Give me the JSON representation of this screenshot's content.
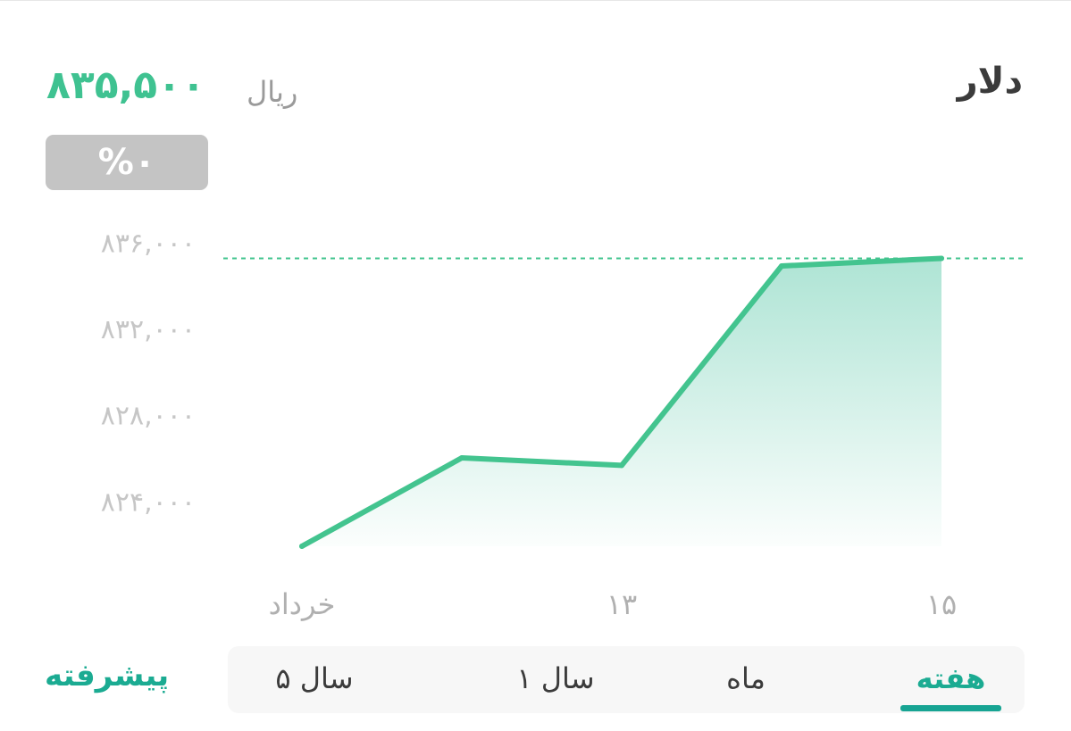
{
  "header": {
    "title": "دلار",
    "price": "۸۳۵,۵۰۰",
    "currency": "ریال",
    "change": "%۰"
  },
  "chart_data": {
    "type": "area",
    "x": [
      1,
      2,
      3,
      4,
      5
    ],
    "values": [
      821900,
      826000,
      825650,
      834900,
      835250
    ],
    "reference_value": 835250,
    "ylim": [
      821900,
      837300
    ],
    "y_ticks": [
      {
        "value": 836000,
        "label": "۸۳۶,۰۰۰"
      },
      {
        "value": 832000,
        "label": "۸۳۲,۰۰۰"
      },
      {
        "value": 828000,
        "label": "۸۲۸,۰۰۰"
      },
      {
        "value": 824000,
        "label": "۸۲۴,۰۰۰"
      }
    ],
    "x_ticks": [
      {
        "x": 1.0,
        "label": "خرداد"
      },
      {
        "x": 3.0,
        "label": "۱۳"
      },
      {
        "x": 5.0,
        "label": "۱۵"
      }
    ],
    "line_color": "#43c48f",
    "fill_color": "#3fbf9a",
    "grid": false
  },
  "tabs": {
    "week": "هفته",
    "month": "ماه",
    "year1": "۱ سال",
    "year5": "۵ سال"
  },
  "advanced_label": "پیشرفته",
  "colors": {
    "accent": "#1bab92",
    "price": "#3fc291",
    "badge": "#c4c4c4"
  }
}
